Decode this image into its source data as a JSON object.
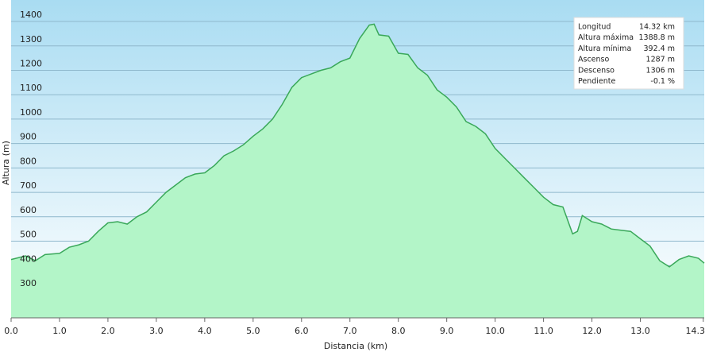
{
  "chart_data": {
    "type": "area",
    "x_label": "Distancia  (km)",
    "y_label": "Altura (m)",
    "x": [
      0.0,
      0.3,
      0.5,
      0.7,
      1.0,
      1.2,
      1.4,
      1.6,
      1.8,
      2.0,
      2.2,
      2.4,
      2.6,
      2.8,
      3.0,
      3.2,
      3.4,
      3.6,
      3.8,
      4.0,
      4.2,
      4.4,
      4.6,
      4.8,
      5.0,
      5.2,
      5.4,
      5.6,
      5.8,
      6.0,
      6.2,
      6.4,
      6.6,
      6.8,
      7.0,
      7.2,
      7.4,
      7.5,
      7.6,
      7.8,
      8.0,
      8.2,
      8.4,
      8.6,
      8.8,
      9.0,
      9.2,
      9.4,
      9.6,
      9.8,
      10.0,
      10.2,
      10.4,
      10.6,
      10.8,
      11.0,
      11.2,
      11.4,
      11.6,
      11.7,
      11.8,
      12.0,
      12.2,
      12.4,
      12.6,
      12.8,
      13.0,
      13.2,
      13.4,
      13.6,
      13.8,
      14.0,
      14.2,
      14.32
    ],
    "series": [
      {
        "name": "Altura",
        "color": "#3aa85a",
        "fill": "#b3f5c8",
        "values": [
          425,
          440,
          420,
          445,
          450,
          475,
          485,
          500,
          540,
          575,
          580,
          570,
          600,
          620,
          660,
          700,
          730,
          760,
          775,
          780,
          810,
          850,
          870,
          895,
          930,
          960,
          1000,
          1060,
          1130,
          1170,
          1185,
          1200,
          1210,
          1235,
          1250,
          1330,
          1385,
          1389,
          1345,
          1340,
          1270,
          1265,
          1210,
          1180,
          1120,
          1090,
          1050,
          990,
          970,
          940,
          880,
          840,
          800,
          760,
          720,
          680,
          650,
          640,
          530,
          540,
          605,
          580,
          570,
          550,
          545,
          540,
          510,
          480,
          420,
          395,
          425,
          440,
          430,
          410
        ]
      }
    ],
    "xlim": [
      0,
      14.32
    ],
    "ylim": [
      186,
      1488
    ],
    "xticks": [
      {
        "value": 0,
        "label": "0.0"
      },
      {
        "value": 1,
        "label": "1.0"
      },
      {
        "value": 2,
        "label": "2.0"
      },
      {
        "value": 3,
        "label": "3.0"
      },
      {
        "value": 4,
        "label": "4.0"
      },
      {
        "value": 5,
        "label": "5.0"
      },
      {
        "value": 6,
        "label": "6.0"
      },
      {
        "value": 7,
        "label": "7.0"
      },
      {
        "value": 8,
        "label": "8.0"
      },
      {
        "value": 9,
        "label": "9.0"
      },
      {
        "value": 10,
        "label": "10.0"
      },
      {
        "value": 11,
        "label": "11.0"
      },
      {
        "value": 12,
        "label": "12.0"
      },
      {
        "value": 13,
        "label": "13.0"
      },
      14.3
    ],
    "yticks": [
      300,
      400,
      500,
      600,
      700,
      800,
      900,
      1000,
      1100,
      1200,
      1300,
      1400
    ],
    "grid": true,
    "info_table": [
      {
        "label": "Longitud",
        "value": "14.32 km"
      },
      {
        "label": "Altura máxima",
        "value": "1388.8 m"
      },
      {
        "label": "Altura mínima",
        "value": "392.4 m"
      },
      {
        "label": "Ascenso",
        "value": "1287 m"
      },
      {
        "label": "Descenso",
        "value": "1306 m"
      },
      {
        "label": "Pendiente",
        "value": "-0.1 %"
      }
    ]
  }
}
